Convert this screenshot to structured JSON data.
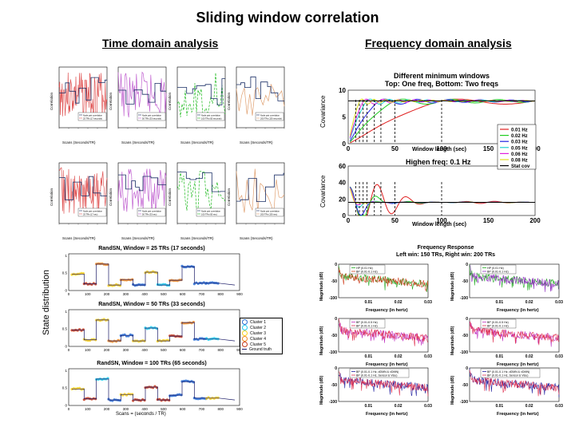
{
  "page": {
    "title": "Sliding window correlation",
    "time_domain_heading": "Time domain analysis",
    "frequency_domain_heading": "Frequency domain analysis"
  },
  "time_domain": {
    "panels": [
      {
        "ylabel": "Correlation",
        "xlabel": "Scans (Seconds/TR)",
        "legend1": "Node pair correlation",
        "legend2": "25 TRs (17 seconds)",
        "color": "#e05555"
      },
      {
        "ylabel": "Correlation",
        "xlabel": "Scans (Seconds/TR)",
        "legend1": "Node pair correlation",
        "legend2": "50 TRs (33 seconds)",
        "color": "#c060d0"
      },
      {
        "ylabel": "Correlation",
        "xlabel": "Scans (Seconds/TR)",
        "legend1": "Node pair correlation",
        "legend2": "100 TRs (65 seconds)",
        "color": "#22bb22"
      },
      {
        "ylabel": "Correlation",
        "xlabel": "Scans (Seconds/TR)",
        "legend1": "Node pair correlation",
        "legend2": "200 TRs (130 seconds)",
        "color": "#e0a070"
      },
      {
        "ylabel": "Correlation",
        "xlabel": "Scans (Seconds/TR)",
        "legend1": "Node pair correlation",
        "legend2": "25 TRs (17 sec)",
        "color": "#e05555"
      },
      {
        "ylabel": "Correlation",
        "xlabel": "Scans (Seconds/TR)",
        "legend1": "Node pair correlation",
        "legend2": "50 TRs (33 sec)",
        "color": "#c060d0"
      },
      {
        "ylabel": "Correlation",
        "xlabel": "Scans (Seconds/TR)",
        "legend1": "Node pair correlation",
        "legend2": "100 TRs (65 sec)",
        "color": "#22bb22"
      },
      {
        "ylabel": "Correlation",
        "xlabel": "Scans (Seconds/TR)",
        "legend1": "Node pair correlation",
        "legend2": "200 TRs (130 sec)",
        "color": "#e0a070"
      }
    ]
  },
  "state_distribution": {
    "ylabel": "State distribution",
    "legend": [
      "Cluster 1",
      "Cluster 2",
      "Cluster 3",
      "Cluster 4",
      "Cluster 5",
      "Ground truth"
    ],
    "cluster_colors": [
      "#2a6fd6",
      "#22ccee",
      "#ffd21f",
      "#f08a24",
      "#c63a1c"
    ],
    "plots": [
      {
        "title": "RandSN, Window = 25 TRs (17 seconds)",
        "xlabel": ""
      },
      {
        "title": "RandSN, Window = 50 TRs (33 seconds)",
        "xlabel": ""
      },
      {
        "title": "RandSN, Window = 100 TRs (65 seconds)",
        "xlabel": "Scans = (seconds / TR)"
      }
    ],
    "xticks": [
      "0",
      "100",
      "200",
      "300",
      "400",
      "500",
      "600",
      "700",
      "800",
      "900"
    ],
    "yticks": [
      "0",
      "0.5",
      "1"
    ]
  },
  "covariance": {
    "title_line1": "Different minimum windows",
    "title_line2": "Top: One freq, Bottom: Two freqs",
    "mid_label": "Highen freq: 0.1 Hz",
    "ylabel": "Covariance",
    "xlabel": "Window length (sec)",
    "top_yticks": [
      "0",
      "5",
      "10"
    ],
    "bottom_yticks": [
      "0",
      "20",
      "40",
      "60"
    ],
    "xticks": [
      "0",
      "50",
      "100",
      "150",
      "200"
    ],
    "legend": [
      {
        "label": "0.01 Hz",
        "color": "#e02020"
      },
      {
        "label": "0.02 Hz",
        "color": "#20cc20"
      },
      {
        "label": "0.03 Hz",
        "color": "#2020e0"
      },
      {
        "label": "0.05 Hz",
        "color": "#20d0d0"
      },
      {
        "label": "0.06 Hz",
        "color": "#e020e0"
      },
      {
        "label": "0.08 Hz",
        "color": "#e0e020"
      },
      {
        "label": "Stat cov",
        "color": "#000000"
      }
    ]
  },
  "frequency_response": {
    "title_line1": "Frequency Response",
    "title_line2": "Left win: 150 TRs, Right win: 200 TRs",
    "ylabel": "Magnitude (dB)",
    "xlabel": "Frequency (in hertz)",
    "yticks": [
      "0",
      "-50",
      "-100"
    ],
    "xticks": [
      "0.01",
      "0.02",
      "0.03"
    ],
    "panels": [
      {
        "legend": [
          "HP (0.01 Hz)",
          "BP (0.01-0.1 Hz)"
        ],
        "colors": [
          "#20aa20",
          "#d04020"
        ]
      },
      {
        "legend": [
          "HP (0.01 Hz)",
          "BP (0.01-0.1 Hz)"
        ],
        "colors": [
          "#20aa20",
          "#9030c0"
        ]
      },
      {
        "legend": [
          "BP (0.01-0.5 Hz)",
          "BP (0.01-0.1 Hz)"
        ],
        "colors": [
          "#c030c0",
          "#e03050"
        ]
      },
      {
        "legend": [
          "BP (0.01-0.5 Hz)",
          "BP (0.01-0.1 Hz)"
        ],
        "colors": [
          "#c030c0",
          "#e03050"
        ]
      },
      {
        "legend": [
          "BP (0.01-0.1 Hz, dDMN & vDMN)",
          "BP (0.01-0.1 Hz, Sensor & Visu)"
        ],
        "colors": [
          "#2020a0",
          "#e03050"
        ]
      },
      {
        "legend": [
          "BP (0.01-0.1 Hz, dDMN & vDMN)",
          "BP (0.01-0.1 Hz, Sensor & Visu)"
        ],
        "colors": [
          "#2020a0",
          "#e03050"
        ]
      }
    ]
  }
}
